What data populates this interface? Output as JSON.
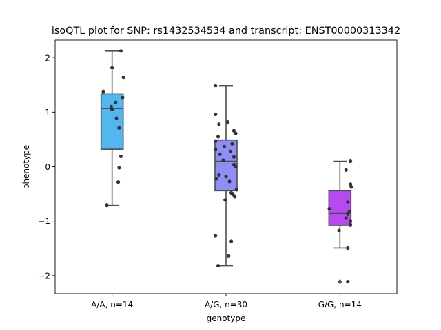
{
  "chart_data": {
    "type": "box",
    "title": "isoQTL plot for SNP: rs1432534534 and transcript: ENST00000313342",
    "xlabel": "genotype",
    "ylabel": "phenotype",
    "ylim": [
      -2.33,
      2.33
    ],
    "yticks": [
      -2,
      -1,
      0,
      1,
      2
    ],
    "ytick_labels": [
      "−2",
      "−1",
      "0",
      "1",
      "2"
    ],
    "categories": [
      "A/A, n=14",
      "A/G, n=30",
      "G/G, n=14"
    ],
    "grid": false,
    "legend": "none",
    "boxes": [
      {
        "category": "A/A, n=14",
        "color": "#52b7ef",
        "q1": 0.32,
        "median": 1.07,
        "q3": 1.34,
        "whisker_low": -0.71,
        "whisker_high": 2.13,
        "outliers": []
      },
      {
        "category": "A/G, n=30",
        "color": "#8d8ff5",
        "q1": -0.44,
        "median": 0.1,
        "q3": 0.49,
        "whisker_low": -1.82,
        "whisker_high": 1.49,
        "outliers": []
      },
      {
        "category": "G/G, n=14",
        "color": "#b649f0",
        "q1": -1.08,
        "median": -0.86,
        "q3": -0.44,
        "whisker_low": -1.49,
        "whisker_high": 0.1,
        "outliers": [
          -2.11
        ]
      }
    ],
    "points": [
      [
        [
          0.1,
          2.13
        ],
        [
          0.0,
          1.82
        ],
        [
          0.13,
          1.64
        ],
        [
          -0.1,
          1.38
        ],
        [
          0.12,
          1.27
        ],
        [
          0.04,
          1.18
        ],
        [
          -0.01,
          1.1
        ],
        [
          0.0,
          1.05
        ],
        [
          0.05,
          0.89
        ],
        [
          0.08,
          0.71
        ],
        [
          0.1,
          0.19
        ],
        [
          0.08,
          -0.02
        ],
        [
          0.07,
          -0.28
        ],
        [
          -0.06,
          -0.71
        ]
      ],
      [
        [
          -0.12,
          1.49
        ],
        [
          -0.12,
          0.96
        ],
        [
          -0.08,
          0.78
        ],
        [
          0.02,
          0.82
        ],
        [
          0.09,
          0.66
        ],
        [
          0.11,
          0.61
        ],
        [
          -0.09,
          0.55
        ],
        [
          -0.12,
          0.47
        ],
        [
          0.07,
          0.42
        ],
        [
          -0.02,
          0.37
        ],
        [
          -0.12,
          0.32
        ],
        [
          0.05,
          0.28
        ],
        [
          -0.07,
          0.23
        ],
        [
          0.09,
          0.18
        ],
        [
          -0.03,
          0.12
        ],
        [
          0.09,
          0.04
        ],
        [
          0.11,
          0.0
        ],
        [
          -0.11,
          -0.22
        ],
        [
          -0.08,
          -0.15
        ],
        [
          0.0,
          -0.18
        ],
        [
          0.12,
          -0.42
        ],
        [
          0.06,
          -0.48
        ],
        [
          0.08,
          -0.51
        ],
        [
          0.1,
          -0.55
        ],
        [
          -0.01,
          -0.61
        ],
        [
          -0.12,
          -1.27
        ],
        [
          0.06,
          -1.37
        ],
        [
          0.03,
          -1.64
        ],
        [
          -0.09,
          -1.82
        ],
        [
          0.04,
          -0.27
        ]
      ],
      [
        [
          0.12,
          0.1
        ],
        [
          0.07,
          -0.06
        ],
        [
          0.12,
          -0.32
        ],
        [
          0.13,
          -0.37
        ],
        [
          -0.12,
          -0.77
        ],
        [
          0.11,
          -0.82
        ],
        [
          0.09,
          -0.87
        ],
        [
          0.07,
          -0.94
        ],
        [
          0.12,
          -1.0
        ],
        [
          0.12,
          -1.07
        ],
        [
          -0.01,
          -1.17
        ],
        [
          0.09,
          -0.65
        ],
        [
          0.09,
          -1.49
        ],
        [
          0.09,
          -2.11
        ]
      ]
    ]
  }
}
